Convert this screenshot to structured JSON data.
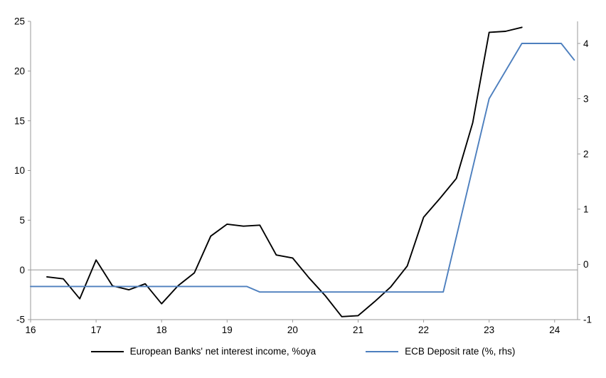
{
  "chart_data": {
    "type": "line",
    "title": "",
    "xlabel": "",
    "ylabel_left": "",
    "ylabel_right": "",
    "x_axis": {
      "min": 16,
      "max": 24.35,
      "ticks": [
        16,
        17,
        18,
        19,
        20,
        21,
        22,
        23,
        24
      ]
    },
    "left_axis": {
      "min": -5,
      "max": 25,
      "ticks": [
        -5,
        0,
        5,
        10,
        15,
        20,
        25
      ]
    },
    "right_axis": {
      "min": -1,
      "max": 4.4,
      "ticks": [
        -1,
        0,
        1,
        2,
        3,
        4
      ]
    },
    "grid": false,
    "zero_line": true,
    "legend_position": "bottom",
    "series": [
      {
        "name": "European Banks' net interest income, %oya",
        "axis": "left",
        "color": "#000000",
        "x": [
          16.25,
          16.5,
          16.75,
          17.0,
          17.25,
          17.5,
          17.75,
          18.0,
          18.25,
          18.5,
          18.75,
          19.0,
          19.25,
          19.5,
          19.75,
          20.0,
          20.25,
          20.5,
          20.75,
          21.0,
          21.25,
          21.5,
          21.75,
          22.0,
          22.25,
          22.5,
          22.75,
          23.0,
          23.25,
          23.5
        ],
        "values": [
          -0.7,
          -0.9,
          -2.9,
          1.0,
          -1.6,
          -2.0,
          -1.4,
          -3.4,
          -1.6,
          -0.3,
          3.4,
          4.6,
          4.4,
          4.5,
          1.5,
          1.2,
          -0.8,
          -2.6,
          -4.7,
          -4.6,
          -3.2,
          -1.7,
          0.4,
          5.3,
          7.2,
          9.2,
          14.8,
          23.9,
          24.0,
          24.4
        ]
      },
      {
        "name": "ECB Deposit rate (%, rhs)",
        "axis": "right",
        "color": "#4d7fbe",
        "x": [
          16.0,
          19.3,
          19.5,
          22.3,
          23.0,
          23.5,
          24.1,
          24.3
        ],
        "values": [
          -0.4,
          -0.4,
          -0.5,
          -0.5,
          3.0,
          4.0,
          4.0,
          3.7
        ]
      }
    ]
  },
  "colors": {
    "axis": "#9a9a9a",
    "zero_line": "#b3b3b3",
    "text": "#000000"
  }
}
